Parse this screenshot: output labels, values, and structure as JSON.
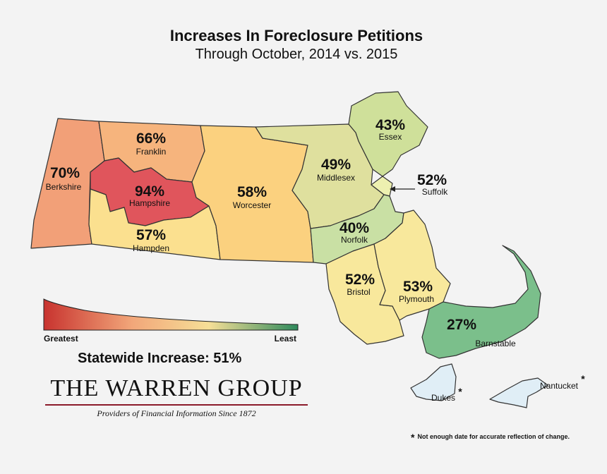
{
  "title": "Increases In Foreclosure Petitions",
  "subtitle": "Through October, 2014 vs. 2015",
  "colors": {
    "greatest": "#c8332f",
    "least": "#2e8a5c",
    "Berkshire": "#f2a078",
    "Franklin": "#f6b47d",
    "Hampshire": "#e0555c",
    "Hampden": "#fbe08f",
    "Worcester": "#fbd17f",
    "Middlesex": "#dfe09e",
    "Essex": "#cfe09a",
    "Suffolk": "#edf0b0",
    "Norfolk": "#c9e0a4",
    "Bristol": "#f8e89c",
    "Plymouth": "#f8e89c",
    "Barnstable": "#7bbf8b",
    "Dukes": "#e0eef6",
    "Nantucket": "#e0eef6"
  },
  "counties": {
    "Berkshire": {
      "pct": "70%",
      "name": "Berkshire"
    },
    "Franklin": {
      "pct": "66%",
      "name": "Franklin"
    },
    "Hampshire": {
      "pct": "94%",
      "name": "Hampshire"
    },
    "Hampden": {
      "pct": "57%",
      "name": "Hampden"
    },
    "Worcester": {
      "pct": "58%",
      "name": "Worcester"
    },
    "Middlesex": {
      "pct": "49%",
      "name": "Middlesex"
    },
    "Essex": {
      "pct": "43%",
      "name": "Essex"
    },
    "Suffolk": {
      "pct": "52%",
      "name": "Suffolk"
    },
    "Norfolk": {
      "pct": "40%",
      "name": "Norfolk"
    },
    "Bristol": {
      "pct": "52%",
      "name": "Bristol"
    },
    "Plymouth": {
      "pct": "53%",
      "name": "Plymouth"
    },
    "Barnstable": {
      "pct": "27%",
      "name": "Barnstable"
    },
    "Dukes": {
      "pct": "",
      "name": "Dukes",
      "mark": "*"
    },
    "Nantucket": {
      "pct": "",
      "name": "Nantucket",
      "mark": "*"
    }
  },
  "legend": {
    "greatest": "Greatest",
    "least": "Least"
  },
  "statewide": "Statewide Increase: 51%",
  "logo": {
    "text": "THE WARREN GROUP",
    "tagline": "Providers of Financial Information Since 1872"
  },
  "footnote": {
    "mark": "*",
    "text": "Not enough date for accurate reflection of change."
  }
}
